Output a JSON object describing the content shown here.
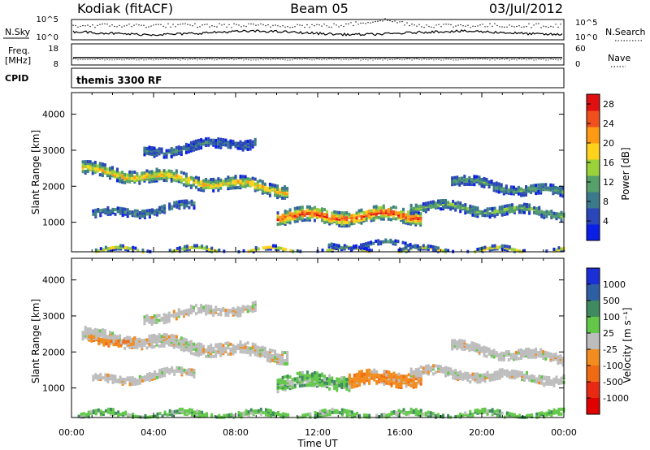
{
  "header": {
    "station": "Kodiak (fitACF)",
    "beam": "Beam 05",
    "date": "03/Jul/2012"
  },
  "strip_labels": {
    "nsky": "N.Sky",
    "freq_line1": "Freq.",
    "freq_line2": "[MHz]",
    "cpid": "CPID",
    "nsearch": "N.Search",
    "nave": "Nave",
    "cpid_value": "themis 3300 RF"
  },
  "strip_ticks": {
    "noise_left": [
      "10^5",
      "10^0"
    ],
    "noise_right": [
      "10^5",
      "10^0"
    ],
    "freq_left": [
      "18",
      "8"
    ],
    "nave_right": [
      "60",
      "0"
    ]
  },
  "chart_data": [
    {
      "type": "heatmap",
      "panel": "power",
      "ylabel": "Slant Range [km]",
      "xlabel": "",
      "x_ticks": [
        "00:00",
        "04:00",
        "08:00",
        "12:00",
        "16:00",
        "20:00",
        "00:00"
      ],
      "y_ticks": [
        1000,
        2000,
        3000,
        4000
      ],
      "ylim": [
        180,
        4600
      ],
      "xlim_hours": [
        0,
        24
      ],
      "colorbar": {
        "label": "Power [dB]",
        "ticks": [
          4,
          8,
          12,
          16,
          20,
          24,
          28
        ],
        "range": [
          0,
          30
        ],
        "colors": [
          "#0a1fe6",
          "#2a46b8",
          "#3b7a8a",
          "#56a06a",
          "#9bd23a",
          "#ffd21e",
          "#ff9a14",
          "#f0501e",
          "#e01010"
        ]
      },
      "echo_bands": [
        {
          "x0": 0.5,
          "x1": 10.5,
          "y_start": 2500,
          "y_end": 1950,
          "width": 320,
          "level": 0.7
        },
        {
          "x0": 10.0,
          "x1": 17.0,
          "y_start": 1200,
          "y_end": 1250,
          "width": 380,
          "level": 0.95
        },
        {
          "x0": 16.5,
          "x1": 24.0,
          "y_start": 1500,
          "y_end": 1300,
          "width": 250,
          "level": 0.4
        },
        {
          "x0": 3.5,
          "x1": 9.0,
          "y_start": 3000,
          "y_end": 3300,
          "width": 240,
          "level": 0.25
        },
        {
          "x0": 0.3,
          "x1": 24.0,
          "y_start": 260,
          "y_end": 260,
          "width": 90,
          "level": 0.55
        },
        {
          "x0": 1.0,
          "x1": 6.0,
          "y_start": 1250,
          "y_end": 1500,
          "width": 220,
          "level": 0.3
        },
        {
          "x0": 18.5,
          "x1": 24.0,
          "y_start": 2200,
          "y_end": 1850,
          "width": 260,
          "level": 0.35
        },
        {
          "x0": 12.5,
          "x1": 17.0,
          "y_start": 420,
          "y_end": 430,
          "width": 110,
          "level": 0.25
        }
      ]
    },
    {
      "type": "heatmap",
      "panel": "velocity",
      "ylabel": "Slant Range [km]",
      "xlabel": "Time UT",
      "x_ticks": [
        "00:00",
        "04:00",
        "08:00",
        "12:00",
        "16:00",
        "20:00",
        "00:00"
      ],
      "y_ticks": [
        1000,
        2000,
        3000,
        4000
      ],
      "ylim": [
        180,
        4600
      ],
      "xlim_hours": [
        0,
        24
      ],
      "colorbar": {
        "label": "Velocity [m s⁻¹]",
        "ticks": [
          "1000",
          "500",
          "100",
          "25",
          "-25",
          "-100",
          "-500",
          "-1000"
        ],
        "colors": [
          "#1b2fd6",
          "#2f5fa3",
          "#3f8a5f",
          "#63c84a",
          "#bdbdbd",
          "#f28c1e",
          "#f06a14",
          "#e82a14",
          "#e00000"
        ]
      },
      "echo_bands": [
        {
          "x0": 0.5,
          "x1": 10.5,
          "y_start": 2500,
          "y_end": 1950,
          "width": 320,
          "class": "gray"
        },
        {
          "x0": 10.0,
          "x1": 13.5,
          "y_start": 1200,
          "y_end": 1250,
          "width": 380,
          "class": "green"
        },
        {
          "x0": 13.5,
          "x1": 17.0,
          "y_start": 1250,
          "y_end": 1350,
          "width": 380,
          "class": "orange"
        },
        {
          "x0": 16.5,
          "x1": 24.0,
          "y_start": 1500,
          "y_end": 1300,
          "width": 250,
          "class": "gray"
        },
        {
          "x0": 3.5,
          "x1": 9.0,
          "y_start": 3000,
          "y_end": 3300,
          "width": 240,
          "class": "gray"
        },
        {
          "x0": 0.3,
          "x1": 24.0,
          "y_start": 300,
          "y_end": 300,
          "width": 140,
          "class": "green"
        },
        {
          "x0": 1.0,
          "x1": 6.0,
          "y_start": 1250,
          "y_end": 1500,
          "width": 220,
          "class": "gray"
        },
        {
          "x0": 18.5,
          "x1": 24.0,
          "y_start": 2200,
          "y_end": 1850,
          "width": 260,
          "class": "gray"
        },
        {
          "x0": 0.8,
          "x1": 3.0,
          "y_start": 2450,
          "y_end": 2300,
          "width": 160,
          "class": "orange"
        }
      ]
    }
  ]
}
